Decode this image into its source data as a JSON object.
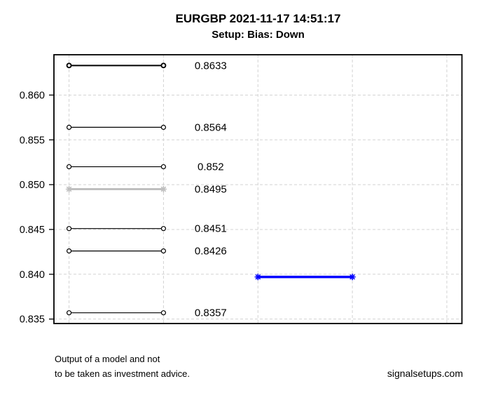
{
  "header": {
    "title": "EURGBP 2021-11-17 14:51:17",
    "subtitle": "Setup: Bias: Down"
  },
  "footer": {
    "disclaimer_line1": "Output of a model and not",
    "disclaimer_line2": "to be taken as investment advice.",
    "watermark": "signalsetups.com"
  },
  "chart_data": {
    "type": "segments",
    "title": "EURGBP 2021-11-17 14:51:17",
    "subtitle": "Setup: Bias: Down",
    "xlabel": "",
    "ylabel": "",
    "xlim": [
      0.84,
      5.16
    ],
    "ylim": [
      0.8345,
      0.8645
    ],
    "yticks": [
      0.835,
      0.84,
      0.845,
      0.85,
      0.855,
      0.86
    ],
    "ytick_labels": [
      "0.835",
      "0.840",
      "0.845",
      "0.850",
      "0.855",
      "0.860"
    ],
    "x_gridlines": [
      1,
      2,
      3,
      4,
      5
    ],
    "grid": true,
    "grid_color": "#D3D3D3",
    "axis_color": "#000000",
    "label_x": 2.5,
    "colors": {
      "level": "#000000",
      "inactive_level": "#BFBFBF",
      "bias_signal": "#0000FF"
    },
    "segments": [
      {
        "price": 0.8633,
        "label": "0.8633",
        "x0": 1,
        "x1": 2,
        "color": "#000000",
        "line_width": 2,
        "marker": "circle"
      },
      {
        "price": 0.8564,
        "label": "0.8564",
        "x0": 1,
        "x1": 2,
        "color": "#000000",
        "line_width": 1.2,
        "marker": "circle"
      },
      {
        "price": 0.852,
        "label": "0.852",
        "x0": 1,
        "x1": 2,
        "color": "#000000",
        "line_width": 1.2,
        "marker": "circle"
      },
      {
        "price": 0.8495,
        "label": "0.8495",
        "x0": 1,
        "x1": 2,
        "color": "#BFBFBF",
        "line_width": 3,
        "marker": "asterisk"
      },
      {
        "price": 0.8451,
        "label": "0.8451",
        "x0": 1,
        "x1": 2,
        "color": "#000000",
        "line_width": 1.2,
        "marker": "circle"
      },
      {
        "price": 0.8426,
        "label": "0.8426",
        "x0": 1,
        "x1": 2,
        "color": "#000000",
        "line_width": 1.2,
        "marker": "circle"
      },
      {
        "price": 0.8397,
        "label": "",
        "x0": 3,
        "x1": 4,
        "color": "#0000FF",
        "line_width": 3.5,
        "marker": "asterisk"
      },
      {
        "price": 0.8357,
        "label": "0.8357",
        "x0": 1,
        "x1": 2,
        "color": "#000000",
        "line_width": 1.2,
        "marker": "circle"
      }
    ]
  }
}
